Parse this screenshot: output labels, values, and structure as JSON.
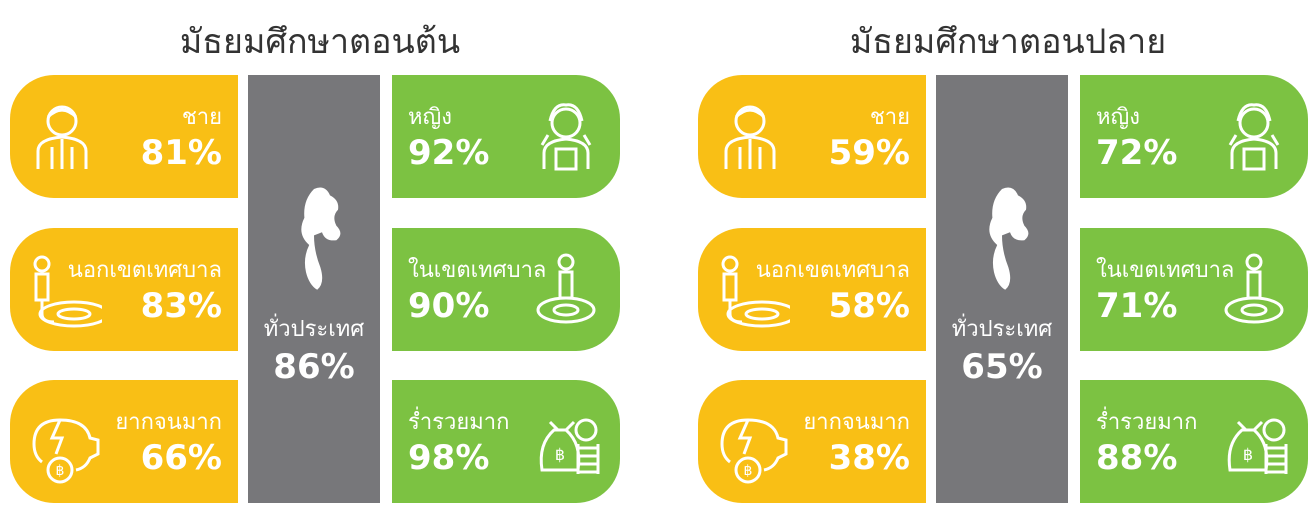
{
  "panels": [
    {
      "title": "มัธยมศึกษาตอนต้น",
      "national": {
        "label": "ทั่วประเทศ",
        "value": "86%"
      },
      "left": [
        {
          "label": "ชาย",
          "value": "81%"
        },
        {
          "label": "นอกเขตเทศบาล",
          "value": "83%"
        },
        {
          "label": "ยากจนมาก",
          "value": "66%"
        }
      ],
      "right": [
        {
          "label": "หญิง",
          "value": "92%"
        },
        {
          "label": "ในเขตเทศบาล",
          "value": "90%"
        },
        {
          "label": "ร่ำรวยมาก",
          "value": "98%"
        }
      ]
    },
    {
      "title": "มัธยมศึกษาตอนปลาย",
      "national": {
        "label": "ทั่วประเทศ",
        "value": "65%"
      },
      "left": [
        {
          "label": "ชาย",
          "value": "59%"
        },
        {
          "label": "นอกเขตเทศบาล",
          "value": "58%"
        },
        {
          "label": "ยากจนมาก",
          "value": "38%"
        }
      ],
      "right": [
        {
          "label": "หญิง",
          "value": "72%"
        },
        {
          "label": "ในเขตเทศบาล",
          "value": "71%"
        },
        {
          "label": "ร่ำรวยมาก",
          "value": "88%"
        }
      ]
    }
  ]
}
